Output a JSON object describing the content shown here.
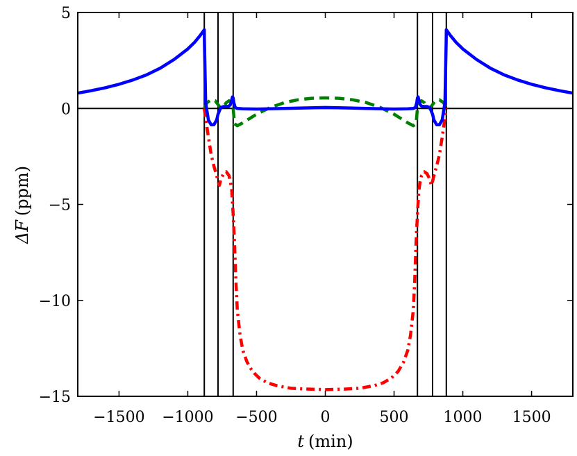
{
  "chart_data": {
    "type": "line",
    "title": "",
    "xlabel": "t (min)",
    "xlabel_var": "t",
    "xlabel_unit": "(min)",
    "ylabel": "ΔF (ppm)",
    "ylabel_var": "ΔF",
    "ylabel_unit": "(ppm)",
    "xlim": [
      -1800,
      1800
    ],
    "ylim": [
      -15,
      5
    ],
    "xticks": [
      -1500,
      -1000,
      -500,
      0,
      500,
      1000,
      1500
    ],
    "xtick_labels": [
      "−1500",
      "−1000",
      "−500",
      "0",
      "500",
      "1000",
      "1500"
    ],
    "yticks": [
      -15,
      -10,
      -5,
      0,
      5
    ],
    "ytick_labels": [
      "−15",
      "−10",
      "−5",
      "0",
      "5"
    ],
    "grid": false,
    "hline_y": 0,
    "vlines_x": [
      -880,
      -780,
      -670,
      670,
      780,
      880
    ],
    "series": [
      {
        "color": "#0000ff",
        "style": "solid",
        "x": [
          -1800,
          -1700,
          -1600,
          -1500,
          -1400,
          -1300,
          -1200,
          -1100,
          -1000,
          -950,
          -910,
          -890,
          -880,
          -879,
          -870,
          -850,
          -830,
          -810,
          -790,
          -780,
          -760,
          -740,
          -720,
          -700,
          -690,
          -680,
          -675,
          -670,
          -665,
          -655,
          -640,
          -600,
          -500,
          -300,
          0,
          300,
          500,
          600,
          640,
          655,
          665,
          670,
          675,
          680,
          690,
          700,
          720,
          740,
          760,
          780,
          790,
          810,
          830,
          850,
          870,
          879,
          880,
          890,
          910,
          950,
          1000,
          1100,
          1200,
          1300,
          1400,
          1500,
          1600,
          1700,
          1800
        ],
        "y": [
          0.8,
          0.93,
          1.08,
          1.26,
          1.48,
          1.75,
          2.1,
          2.55,
          3.1,
          3.45,
          3.8,
          4.0,
          4.1,
          3.5,
          0.3,
          -0.6,
          -0.85,
          -0.85,
          -0.6,
          -0.3,
          0.05,
          0.1,
          0.1,
          0.12,
          0.2,
          0.45,
          0.6,
          0.55,
          0.3,
          0.05,
          0.0,
          -0.02,
          -0.03,
          0.0,
          0.05,
          0.0,
          -0.03,
          -0.02,
          0.0,
          0.05,
          0.3,
          0.55,
          0.6,
          0.45,
          0.2,
          0.12,
          0.1,
          0.1,
          0.05,
          -0.3,
          -0.6,
          -0.85,
          -0.85,
          -0.6,
          0.3,
          3.5,
          4.1,
          4.0,
          3.8,
          3.45,
          3.1,
          2.55,
          2.1,
          1.75,
          1.48,
          1.26,
          1.08,
          0.93,
          0.8
        ]
      },
      {
        "color": "#008000",
        "style": "dashed",
        "x": [
          -880,
          -860,
          -830,
          -800,
          -780,
          -760,
          -740,
          -720,
          -700,
          -680,
          -670,
          -660,
          -640,
          -600,
          -500,
          -400,
          -300,
          -200,
          -100,
          0,
          100,
          200,
          300,
          400,
          500,
          600,
          640,
          660,
          670,
          680,
          700,
          720,
          740,
          760,
          780,
          800,
          830,
          860,
          880
        ],
        "y": [
          0.0,
          0.3,
          0.45,
          0.4,
          0.2,
          0.0,
          0.1,
          0.3,
          0.4,
          0.3,
          0.0,
          -0.8,
          -0.9,
          -0.75,
          -0.3,
          0.05,
          0.3,
          0.45,
          0.53,
          0.55,
          0.53,
          0.45,
          0.3,
          0.05,
          -0.3,
          -0.75,
          -0.9,
          -0.8,
          0.0,
          0.3,
          0.4,
          0.3,
          0.1,
          0.0,
          0.2,
          0.4,
          0.45,
          0.3,
          0.0
        ]
      },
      {
        "color": "#ff0000",
        "style": "dashdot",
        "x": [
          -880,
          -870,
          -850,
          -830,
          -810,
          -790,
          -780,
          -770,
          -760,
          -740,
          -720,
          -700,
          -690,
          -680,
          -670,
          -660,
          -650,
          -640,
          -620,
          -600,
          -570,
          -530,
          -480,
          -420,
          -350,
          -250,
          -150,
          0,
          150,
          250,
          350,
          420,
          480,
          530,
          570,
          600,
          620,
          640,
          650,
          660,
          670,
          680,
          690,
          700,
          720,
          740,
          760,
          770,
          780,
          790,
          810,
          830,
          850,
          870,
          880
        ],
        "y": [
          0.0,
          -0.5,
          -1.5,
          -2.4,
          -3.0,
          -3.5,
          -3.8,
          -4.0,
          -3.7,
          -3.4,
          -3.3,
          -3.5,
          -3.8,
          -4.3,
          -5.5,
          -7.0,
          -9.0,
          -10.5,
          -11.8,
          -12.6,
          -13.2,
          -13.7,
          -14.05,
          -14.3,
          -14.45,
          -14.58,
          -14.62,
          -14.65,
          -14.62,
          -14.58,
          -14.45,
          -14.3,
          -14.05,
          -13.7,
          -13.2,
          -12.6,
          -11.8,
          -10.5,
          -9.0,
          -7.0,
          -5.5,
          -4.3,
          -3.8,
          -3.5,
          -3.3,
          -3.4,
          -3.7,
          -4.0,
          -3.8,
          -3.5,
          -3.0,
          -2.4,
          -1.5,
          -0.5,
          0.0
        ]
      }
    ]
  }
}
